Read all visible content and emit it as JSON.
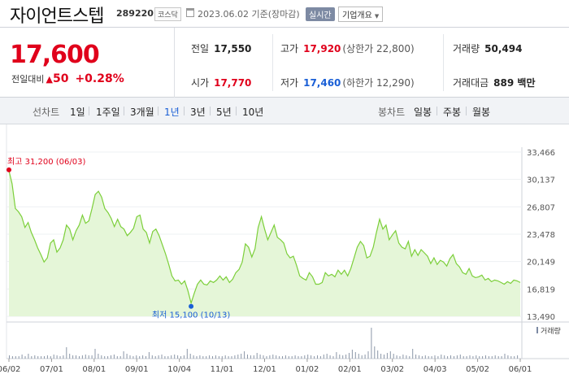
{
  "header": {
    "stock_name": "자이언트스텝",
    "stock_code": "289220",
    "market": "코스닥",
    "date": "2023.06.02 기준(장마감)",
    "realtime_label": "실시간",
    "company_label": "기업개요"
  },
  "price": {
    "current": "17,600",
    "change_label": "전일대비",
    "change_value": "50",
    "change_pct": "+0.28%"
  },
  "stats": {
    "prev_close_label": "전일",
    "prev_close": "17,550",
    "open_label": "시가",
    "open": "17,770",
    "high_label": "고가",
    "high": "17,920",
    "upper_limit": "(상한가 22,800)",
    "low_label": "저가",
    "low": "17,460",
    "lower_limit": "(하한가 12,290)",
    "volume_label": "거래량",
    "volume": "50,494",
    "amount_label": "거래대금",
    "amount": "889 백만"
  },
  "tabs": {
    "line_label": "선차트",
    "periods": [
      "1일",
      "1주일",
      "3개월",
      "1년",
      "3년",
      "5년",
      "10년"
    ],
    "active_period": "1년",
    "candle_label": "봉차트",
    "candles": [
      "일봉",
      "주봉",
      "월봉"
    ]
  },
  "colors": {
    "up": "#e0001b",
    "down": "#1a5fd6",
    "line": "#7ccf3a",
    "fill": "#e5f6d8"
  },
  "chart_data": {
    "type": "area",
    "y_ticks": [
      "33,466",
      "30,137",
      "26,807",
      "23,478",
      "20,149",
      "16,819",
      "13,490"
    ],
    "ylim": [
      13490,
      33466
    ],
    "x_labels": [
      "06/02",
      "07/01",
      "08/01",
      "09/01",
      "10/04",
      "11/01",
      "12/01",
      "01/02",
      "02/01",
      "03/02",
      "04/03",
      "05/02",
      "06/01"
    ],
    "high_label": "최고 31,200 (06/03)",
    "low_label": "최저 15,100 (10/13)",
    "volume_label": "거래량",
    "series": [
      {
        "values": [
          31200,
          29600,
          26600,
          26200,
          25600,
          24300,
          24900,
          23700,
          22800,
          21800,
          21000,
          20100,
          20600,
          22400,
          22800,
          21300,
          21800,
          22800,
          24600,
          24100,
          22800,
          23900,
          24600,
          25800,
          24800,
          25100,
          26600,
          28300,
          28700,
          28000,
          26600,
          26100,
          25400,
          24400,
          25300,
          24400,
          24100,
          23300,
          23700,
          24200,
          25600,
          25800,
          24100,
          23700,
          22400,
          23800,
          24100,
          23300,
          22200,
          21100,
          19800,
          18400,
          17800,
          17900,
          17400,
          17800,
          16600,
          15100,
          16300,
          17400,
          17900,
          17400,
          17300,
          17800,
          17600,
          17900,
          18400,
          17900,
          18300,
          17600,
          18000,
          18800,
          19200,
          20100,
          22300,
          21900,
          20700,
          21700,
          24300,
          25600,
          24100,
          22800,
          23700,
          24600,
          23100,
          22800,
          22400,
          21100,
          20600,
          20800,
          19700,
          18400,
          18100,
          17900,
          18800,
          18300,
          17400,
          17400,
          17600,
          18800,
          18400,
          18600,
          18300,
          19100,
          18600,
          19100,
          18400,
          19300,
          20600,
          21900,
          22600,
          22100,
          20600,
          20800,
          21900,
          23700,
          25300,
          24100,
          24600,
          22800,
          23400,
          23900,
          22400,
          21900,
          21700,
          22600,
          20800,
          21600,
          20900,
          21600,
          21200,
          20800,
          19900,
          20600,
          19800,
          20300,
          20100,
          19600,
          20500,
          21000,
          19900,
          19500,
          18800,
          18600,
          19300,
          18400,
          18200,
          18300,
          18500,
          17900,
          18100,
          17700,
          17900,
          17800,
          17600,
          17400,
          17700,
          17500,
          17900,
          17800,
          17600
        ]
      }
    ],
    "volume": [
      4,
      3,
      3,
      3,
      5,
      3,
      6,
      3,
      4,
      3,
      3,
      3,
      4,
      3,
      5,
      4,
      3,
      4,
      14,
      6,
      4,
      4,
      3,
      4,
      5,
      4,
      4,
      12,
      6,
      4,
      3,
      3,
      4,
      5,
      3,
      3,
      9,
      6,
      4,
      3,
      4,
      3,
      4,
      3,
      8,
      4,
      3,
      4,
      5,
      3,
      3,
      4,
      5,
      4,
      3,
      4,
      12,
      6,
      4,
      3,
      4,
      3,
      3,
      4,
      3,
      4,
      3,
      3,
      4,
      3,
      3,
      4,
      5,
      6,
      9,
      5,
      4,
      4,
      7,
      5,
      4,
      3,
      4,
      5,
      4,
      3,
      3,
      4,
      3,
      3,
      4,
      3,
      3,
      4,
      5,
      4,
      3,
      4,
      3,
      5,
      6,
      4,
      3,
      8,
      5,
      4,
      5,
      7,
      11,
      8,
      6,
      4,
      5,
      9,
      38,
      15,
      10,
      6,
      5,
      7,
      9,
      6,
      4,
      3,
      5,
      4,
      3,
      12,
      5,
      4,
      3,
      4,
      3,
      3,
      4,
      3,
      5,
      4,
      3,
      4,
      3,
      4,
      5,
      3,
      3,
      4,
      3,
      4,
      3,
      3,
      4,
      3,
      3,
      4,
      3,
      3,
      6,
      4,
      3,
      3,
      4
    ]
  }
}
